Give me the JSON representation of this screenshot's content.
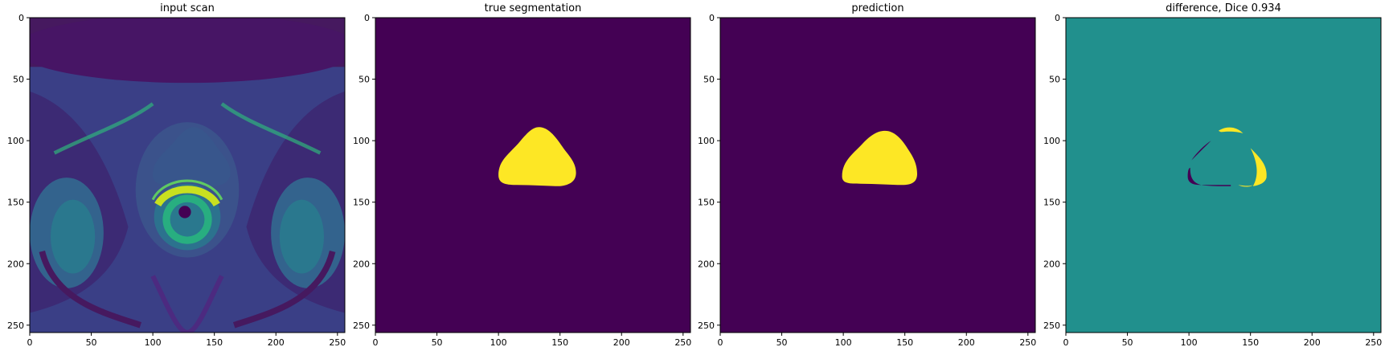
{
  "figure": {
    "panels": [
      {
        "id": "input",
        "title": "input scan",
        "kind": "mri",
        "xticks": [
          "0",
          "50",
          "100",
          "150",
          "200",
          "250"
        ],
        "yticks": [
          "0",
          "50",
          "100",
          "150",
          "200",
          "250"
        ]
      },
      {
        "id": "truth",
        "title": "true segmentation",
        "kind": "mask",
        "xticks": [
          "0",
          "50",
          "100",
          "150",
          "200",
          "250"
        ],
        "yticks": [
          "0",
          "50",
          "100",
          "150",
          "200",
          "250"
        ]
      },
      {
        "id": "pred",
        "title": "prediction",
        "kind": "mask",
        "xticks": [
          "0",
          "50",
          "100",
          "150",
          "200",
          "250"
        ],
        "yticks": [
          "0",
          "50",
          "100",
          "150",
          "200",
          "250"
        ]
      },
      {
        "id": "diff",
        "title": "difference, Dice 0.934",
        "kind": "diff",
        "xticks": [
          "0",
          "50",
          "100",
          "150",
          "200",
          "250"
        ],
        "yticks": [
          "0",
          "50",
          "100",
          "150",
          "200",
          "250"
        ]
      }
    ],
    "axis_range": [
      0,
      256
    ],
    "tick_values": [
      0,
      50,
      100,
      150,
      200,
      250
    ],
    "colors": {
      "background_dark": "#440154",
      "foreground_yellow": "#fde725",
      "diff_mid": "#21908d",
      "mri_tissue": "#3b528b",
      "mri_bright": "#5ec962"
    }
  }
}
